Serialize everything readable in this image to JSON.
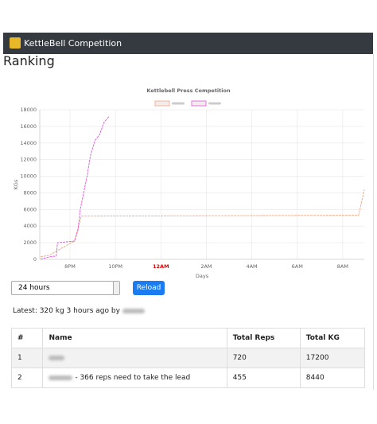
{
  "navbar": {
    "title": "KettleBell Competition"
  },
  "heading": "Ranking",
  "chart_data": {
    "type": "line",
    "title": "Kettlebell Press Competition",
    "x_label": "Days",
    "y_label": "KGs",
    "series": [
      {
        "color": "#f4a582",
        "x": [
          18.7,
          19.1,
          19.4,
          20.2,
          20.5,
          32.7,
          32.8,
          32.95
        ],
        "values": [
          300,
          500,
          1000,
          2200,
          5200,
          5300,
          6500,
          8400
        ]
      },
      {
        "color": "#e055e0",
        "x": [
          18.7,
          19.1,
          19.4,
          19.45,
          20.2,
          20.35,
          20.45,
          20.6,
          20.75,
          20.9,
          21.1,
          21.3,
          21.5,
          21.72
        ],
        "values": [
          0,
          300,
          400,
          2000,
          2200,
          3500,
          6000,
          8000,
          10000,
          12500,
          14300,
          15000,
          16500,
          17200
        ]
      }
    ],
    "xlim": [
      18.67,
      32.95
    ],
    "xticks": [
      {
        "value": 20,
        "label": "8PM"
      },
      {
        "value": 22,
        "label": "10PM"
      },
      {
        "value": 24,
        "label": "12AM"
      },
      {
        "value": 26,
        "label": "2AM"
      },
      {
        "value": 28,
        "label": "4AM"
      },
      {
        "value": 30,
        "label": "6AM"
      },
      {
        "value": 32,
        "label": "8AM"
      }
    ],
    "ylim": [
      0,
      18000
    ],
    "yticks": [
      0,
      2000,
      4000,
      6000,
      8000,
      10000,
      12000,
      14000,
      16000,
      18000
    ],
    "grid": true
  },
  "controls": {
    "range": "24 hours",
    "reload": "Reload"
  },
  "latest": "Latest: 320 kg 3 hours ago by",
  "table": {
    "headers": [
      "#",
      "Name",
      "Total Reps",
      "Total KG"
    ],
    "rows": [
      {
        "rank": 1,
        "reps": 720,
        "kg": 17200
      },
      {
        "rank": 2,
        "note": "- 366 reps need to take the lead",
        "reps": 455,
        "kg": 8440
      }
    ]
  }
}
